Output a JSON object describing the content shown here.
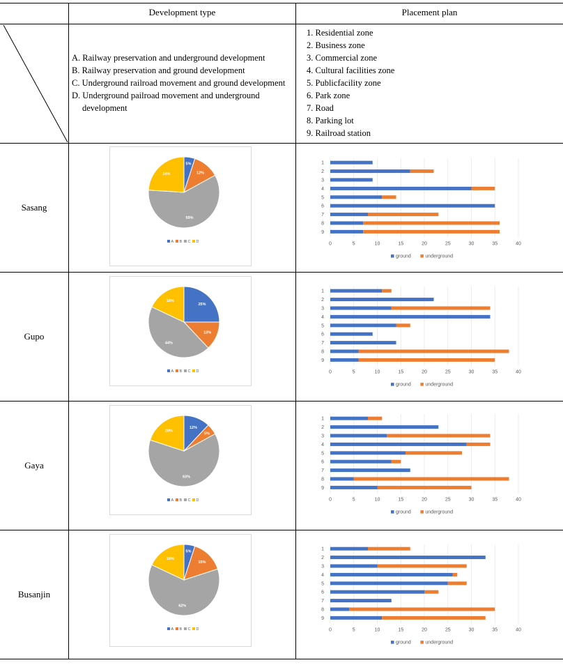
{
  "header": {
    "col2": "Development type",
    "col3": "Placement plan"
  },
  "dev_types": [
    "A. Railway preservation and underground development",
    "B. Railway preservation and ground development",
    "C. Underground railroad movement and ground development",
    "D. Underground pailroad movement and underground",
    "development"
  ],
  "placement_plans": [
    "1. Residential zone",
    "2. Business zone",
    "3. Commercial zone",
    "4. Cultural facilities zone",
    "5. Publicfacility zone",
    "6. Park zone",
    "7. Road",
    "8. Parking lot",
    "9. Railroad station"
  ],
  "colors": {
    "A": "#4472C4",
    "B": "#ED7D31",
    "C": "#A5A5A5",
    "D": "#FFC000",
    "ground": "#4472C4",
    "underground": "#ED7D31"
  },
  "regions": [
    "Sasang",
    "Gupo",
    "Gaya",
    "Busanjin"
  ],
  "chart_data": [
    {
      "type": "pie",
      "region": "Sasang",
      "categories": [
        "A",
        "B",
        "C",
        "D"
      ],
      "values": [
        5,
        12,
        59,
        24
      ],
      "labels": [
        "5%",
        "12%",
        "59%",
        "24%"
      ],
      "legend": [
        "A",
        "B",
        "C",
        "D"
      ]
    },
    {
      "type": "bar",
      "orientation": "horizontal",
      "stacked": true,
      "region": "Sasang",
      "categories": [
        "1",
        "2",
        "3",
        "4",
        "5",
        "6",
        "7",
        "8",
        "9"
      ],
      "series": [
        {
          "name": "ground",
          "values": [
            9,
            17,
            9,
            30,
            11,
            35,
            8,
            7,
            7
          ]
        },
        {
          "name": "underground",
          "values": [
            0,
            5,
            0,
            5,
            3,
            0,
            15,
            29,
            29
          ]
        }
      ],
      "xlim": [
        0,
        40
      ],
      "xticks": [
        "0",
        "5",
        "10",
        "15",
        "20",
        "25",
        "30",
        "35",
        "40"
      ]
    },
    {
      "type": "pie",
      "region": "Gupo",
      "categories": [
        "A",
        "B",
        "C",
        "D"
      ],
      "values": [
        25,
        13,
        44,
        18
      ],
      "labels": [
        "25%",
        "13%",
        "44%",
        "18%"
      ],
      "legend": [
        "A",
        "B",
        "C",
        "D"
      ]
    },
    {
      "type": "bar",
      "orientation": "horizontal",
      "stacked": true,
      "region": "Gupo",
      "categories": [
        "1",
        "2",
        "3",
        "4",
        "5",
        "6",
        "7",
        "8",
        "9"
      ],
      "series": [
        {
          "name": "ground",
          "values": [
            11,
            22,
            13,
            34,
            14,
            9,
            14,
            6,
            6
          ]
        },
        {
          "name": "underground",
          "values": [
            2,
            0,
            21,
            0,
            3,
            0,
            0,
            32,
            29
          ]
        }
      ],
      "xlim": [
        0,
        40
      ],
      "xticks": [
        "0",
        "5",
        "10",
        "15",
        "20",
        "25",
        "30",
        "35",
        "40"
      ]
    },
    {
      "type": "pie",
      "region": "Gaya",
      "categories": [
        "A",
        "B",
        "C",
        "D"
      ],
      "values": [
        12,
        5,
        63,
        20
      ],
      "labels": [
        "12%",
        "5%",
        "63%",
        "20%"
      ],
      "legend": [
        "A",
        "B",
        "C",
        "D"
      ]
    },
    {
      "type": "bar",
      "orientation": "horizontal",
      "stacked": true,
      "region": "Gaya",
      "categories": [
        "1",
        "2",
        "3",
        "4",
        "5",
        "6",
        "7",
        "8",
        "9"
      ],
      "series": [
        {
          "name": "ground",
          "values": [
            8,
            23,
            12,
            29,
            16,
            13,
            17,
            5,
            10
          ]
        },
        {
          "name": "underground",
          "values": [
            3,
            0,
            22,
            5,
            12,
            2,
            0,
            33,
            20
          ]
        }
      ],
      "xlim": [
        0,
        40
      ],
      "xticks": [
        "0",
        "5",
        "10",
        "15",
        "20",
        "25",
        "30",
        "35",
        "40"
      ]
    },
    {
      "type": "pie",
      "region": "Busanjin",
      "categories": [
        "A",
        "B",
        "C",
        "D"
      ],
      "values": [
        5,
        15,
        62,
        18
      ],
      "labels": [
        "5%",
        "15%",
        "62%",
        "18%"
      ],
      "legend": [
        "A",
        "B",
        "C",
        "D"
      ]
    },
    {
      "type": "bar",
      "orientation": "horizontal",
      "stacked": true,
      "region": "Busanjin",
      "categories": [
        "1",
        "2",
        "3",
        "4",
        "5",
        "6",
        "7",
        "8",
        "9"
      ],
      "series": [
        {
          "name": "ground",
          "values": [
            8,
            33,
            10,
            26,
            25,
            20,
            13,
            4,
            11
          ]
        },
        {
          "name": "underground",
          "values": [
            9,
            0,
            19,
            1,
            4,
            3,
            0,
            31,
            22
          ]
        }
      ],
      "xlim": [
        0,
        40
      ],
      "xticks": [
        "0",
        "5",
        "10",
        "15",
        "20",
        "25",
        "30",
        "35",
        "40"
      ]
    }
  ]
}
